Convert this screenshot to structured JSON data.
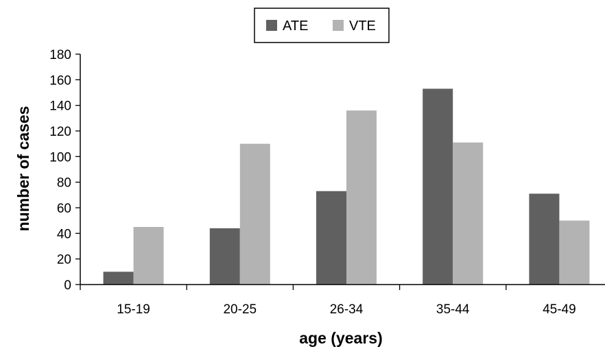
{
  "chart_data": {
    "type": "bar",
    "categories": [
      "15-19",
      "20-25",
      "26-34",
      "35-44",
      "45-49"
    ],
    "series": [
      {
        "name": "ATE",
        "values": [
          10,
          44,
          73,
          153,
          71
        ],
        "color": "#606060"
      },
      {
        "name": "VTE",
        "values": [
          45,
          110,
          136,
          111,
          50
        ],
        "color": "#b3b3b3"
      }
    ],
    "title": "",
    "xlabel": "age (years)",
    "ylabel": "number of cases",
    "ylim": [
      0,
      180
    ],
    "yticks": [
      0,
      20,
      40,
      60,
      80,
      100,
      120,
      140,
      160,
      180
    ],
    "grid": false,
    "legend_position": "top"
  }
}
